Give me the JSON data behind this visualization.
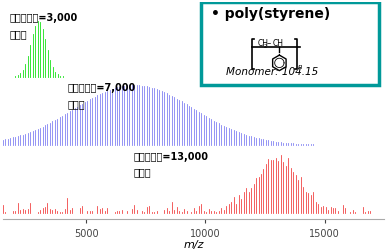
{
  "title": "",
  "xlabel": "m/z",
  "xlim": [
    1500,
    17500
  ],
  "background_color": "#ffffff",
  "green_mean": 3000,
  "green_std": 320,
  "green_color": "#00dd00",
  "green_label1": "평균분자량=3,000",
  "green_label2": "단분산",
  "blue_mean": 7000,
  "blue_std": 2500,
  "blue_color": "#5555ee",
  "blue_label1": "평균분자량=7,000",
  "blue_label2": "다분산",
  "red_mean": 13000,
  "red_std": 900,
  "red_color": "#ee1111",
  "red_label1": "평균분자량=13,000",
  "red_label2": "단분산",
  "monomer_mass": 104.15,
  "box_title": "poly(styrene)",
  "box_monomer": "Monomer: 104.15",
  "box_color": "#009999",
  "xticks": [
    5000,
    10000,
    15000
  ],
  "font_size_label": 7,
  "font_size_box_title": 10,
  "font_size_annotation": 7
}
